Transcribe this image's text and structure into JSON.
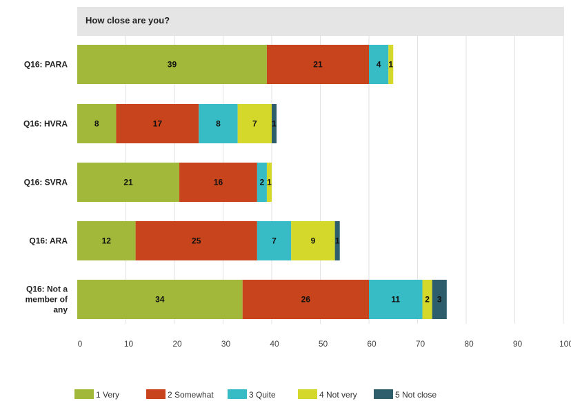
{
  "chart_data": {
    "type": "bar",
    "orientation": "horizontal",
    "stacked": true,
    "title": "How close are you?",
    "categories": [
      "Q16: PARA",
      "Q16: HVRA",
      "Q16: SVRA",
      "Q16: ARA",
      "Q16: Not a member of any"
    ],
    "category_lines": [
      [
        "Q16: PARA"
      ],
      [
        "Q16: HVRA"
      ],
      [
        "Q16: SVRA"
      ],
      [
        "Q16: ARA"
      ],
      [
        "Q16: Not a",
        "member of",
        "any"
      ]
    ],
    "series": [
      {
        "name": "1 Very",
        "color": "#a2b83a",
        "values": [
          39,
          8,
          21,
          12,
          34
        ]
      },
      {
        "name": "2 Somewhat",
        "color": "#c8441c",
        "values": [
          21,
          17,
          16,
          25,
          26
        ]
      },
      {
        "name": "3 Quite",
        "color": "#37bcc6",
        "values": [
          4,
          8,
          2,
          7,
          11
        ]
      },
      {
        "name": "4 Not very",
        "color": "#d3d82a",
        "values": [
          1,
          7,
          1,
          9,
          2
        ]
      },
      {
        "name": "5 Not close",
        "color": "#2e5e6c",
        "values": [
          0,
          1,
          0,
          1,
          3
        ]
      }
    ],
    "data_labels": [
      [
        "39",
        "21",
        "4",
        "1",
        ""
      ],
      [
        "8",
        "17",
        "8",
        "7",
        "1"
      ],
      [
        "21",
        "16",
        "2",
        "1",
        ""
      ],
      [
        "12",
        "25",
        "7",
        "9",
        "1"
      ],
      [
        "34",
        "26",
        "11",
        "2",
        "3"
      ]
    ],
    "xlim": [
      0,
      100
    ],
    "xticks": [
      0,
      10,
      20,
      30,
      40,
      50,
      60,
      70,
      80,
      90,
      100
    ],
    "grid": true,
    "legend_position": "bottom"
  }
}
